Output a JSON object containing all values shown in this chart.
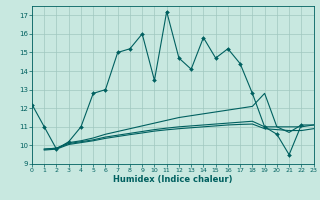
{
  "xlabel": "Humidex (Indice chaleur)",
  "bg_color": "#c8e8e0",
  "grid_color": "#a0c8c0",
  "line_color": "#006060",
  "xlim": [
    0,
    23
  ],
  "ylim": [
    9,
    17.5
  ],
  "yticks": [
    9,
    10,
    11,
    12,
    13,
    14,
    15,
    16,
    17
  ],
  "xticks": [
    0,
    1,
    2,
    3,
    4,
    5,
    6,
    7,
    8,
    9,
    10,
    11,
    12,
    13,
    14,
    15,
    16,
    17,
    18,
    19,
    20,
    21,
    22,
    23
  ],
  "line1_x": [
    0,
    1,
    2,
    3,
    4,
    5,
    6,
    7,
    8,
    9,
    10,
    11,
    12,
    13,
    14,
    15,
    16,
    17,
    18,
    19,
    20,
    21,
    22
  ],
  "line1_y": [
    12.2,
    11.0,
    9.8,
    10.2,
    11.0,
    12.8,
    13.0,
    15.0,
    15.2,
    16.0,
    13.5,
    17.2,
    14.7,
    14.1,
    15.8,
    14.7,
    15.2,
    14.4,
    12.8,
    11.0,
    10.6,
    9.5,
    11.1
  ],
  "line2_x": [
    1,
    2,
    3,
    4,
    5,
    6,
    7,
    8,
    9,
    10,
    11,
    12,
    13,
    14,
    15,
    16,
    17,
    18,
    19,
    20,
    21,
    22,
    23
  ],
  "line2_y": [
    9.8,
    9.85,
    10.15,
    10.25,
    10.4,
    10.6,
    10.75,
    10.9,
    11.05,
    11.2,
    11.35,
    11.5,
    11.6,
    11.7,
    11.8,
    11.9,
    12.0,
    12.1,
    12.8,
    11.0,
    10.7,
    11.1,
    11.1
  ],
  "line3_x": [
    1,
    2,
    3,
    4,
    5,
    6,
    7,
    8,
    9,
    10,
    11,
    12,
    13,
    14,
    15,
    16,
    17,
    18,
    19,
    20,
    21,
    22,
    23
  ],
  "line3_y": [
    9.8,
    9.85,
    10.1,
    10.2,
    10.3,
    10.45,
    10.55,
    10.65,
    10.75,
    10.85,
    10.93,
    11.0,
    11.05,
    11.1,
    11.15,
    11.2,
    11.25,
    11.3,
    11.0,
    11.0,
    11.0,
    11.0,
    11.1
  ],
  "line4_x": [
    1,
    2,
    3,
    4,
    5,
    6,
    7,
    8,
    9,
    10,
    11,
    12,
    13,
    14,
    15,
    16,
    17,
    18,
    19,
    20,
    21,
    22,
    23
  ],
  "line4_y": [
    9.75,
    9.8,
    10.05,
    10.15,
    10.25,
    10.38,
    10.48,
    10.58,
    10.67,
    10.77,
    10.84,
    10.9,
    10.95,
    11.0,
    11.05,
    11.1,
    11.13,
    11.15,
    10.9,
    10.85,
    10.8,
    10.8,
    10.9
  ]
}
